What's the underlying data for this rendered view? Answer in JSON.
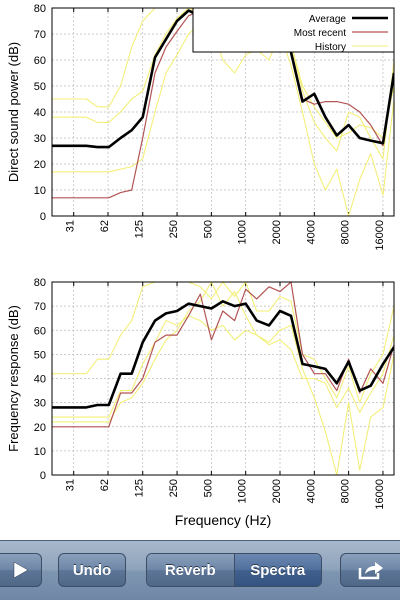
{
  "colors": {
    "average": "#000000",
    "most_recent": "#b35454",
    "history": "#f3ef7a",
    "grid": "#bbbbbb",
    "toolbar": "#7f96b2"
  },
  "toolbar": {
    "play_icon": "play-icon",
    "undo_label": "Undo",
    "reverb_label": "Reverb",
    "spectra_label": "Spectra",
    "selected_segment": "Spectra",
    "share_icon": "share-icon"
  },
  "chart_data": [
    {
      "type": "line",
      "ylabel": "Direct sound power (dB)",
      "xlabel": "",
      "xscale": "log2",
      "xticks": [
        31,
        62,
        125,
        250,
        500,
        1000,
        2000,
        4000,
        8000,
        16000
      ],
      "xlim": [
        20,
        20000
      ],
      "ylim": [
        0,
        80
      ],
      "yticks": [
        0,
        10,
        20,
        30,
        40,
        50,
        60,
        70,
        80
      ],
      "grid": true,
      "legend": "top-right",
      "series": [
        {
          "name": "Average",
          "role": "average",
          "x": [
            20,
            40,
            50,
            63,
            80,
            100,
            125,
            160,
            200,
            250,
            315,
            400,
            500,
            630,
            800,
            1000,
            1250,
            1600,
            2000,
            2500,
            3150,
            4000,
            5000,
            6300,
            8000,
            10000,
            12500,
            16000,
            20000
          ],
          "y": [
            27,
            27,
            26.5,
            26.5,
            30,
            33,
            38,
            61,
            68,
            75,
            79,
            77,
            80,
            66,
            72,
            77,
            74,
            69,
            75,
            63,
            44,
            47,
            38,
            31,
            35,
            30,
            29,
            28,
            55
          ]
        },
        {
          "name": "Most recent",
          "role": "most_recent",
          "x": [
            20,
            40,
            50,
            63,
            80,
            100,
            125,
            160,
            200,
            250,
            315,
            400,
            500,
            630,
            800,
            1000,
            1250,
            1600,
            2000,
            2500,
            3150,
            4000,
            5000,
            6300,
            8000,
            10000,
            12500,
            16000,
            20000
          ],
          "y": [
            7,
            7,
            7,
            7,
            9,
            10,
            30,
            55,
            65,
            71,
            77,
            79,
            80,
            80,
            78,
            79,
            75,
            80,
            80,
            62,
            45,
            43,
            44,
            44,
            43,
            40,
            35,
            27,
            55
          ]
        },
        {
          "name": "History",
          "role": "history",
          "x": [
            20,
            40,
            50,
            63,
            80,
            100,
            125,
            160,
            200,
            250,
            315,
            400,
            500,
            630,
            800,
            1000,
            1250,
            1600,
            2000,
            2500,
            3150,
            4000,
            5000,
            6300,
            8000,
            10000,
            12500,
            16000,
            20000
          ],
          "y": [
            45,
            45,
            42,
            42,
            50,
            65,
            75,
            80,
            80,
            80,
            80,
            79,
            78,
            72,
            68,
            74,
            70,
            70,
            75,
            66,
            48,
            36,
            30,
            25,
            40,
            38,
            30,
            22,
            60
          ]
        },
        {
          "name": "",
          "role": "history",
          "x": [
            20,
            40,
            50,
            63,
            80,
            100,
            125,
            160,
            200,
            250,
            315,
            400,
            500,
            630,
            800,
            1000,
            1250,
            1600,
            2000,
            2500,
            3150,
            4000,
            5000,
            6300,
            8000,
            10000,
            12500,
            16000,
            20000
          ],
          "y": [
            38,
            38,
            36,
            36,
            40,
            45,
            48,
            62,
            70,
            76,
            80,
            78,
            74,
            60,
            55,
            62,
            64,
            60,
            70,
            58,
            40,
            20,
            10,
            18,
            0,
            14,
            24,
            8,
            45
          ]
        },
        {
          "name": "",
          "role": "history",
          "x": [
            20,
            40,
            50,
            63,
            80,
            100,
            125,
            160,
            200,
            250,
            315,
            400,
            500,
            630,
            800,
            1000,
            1250,
            1600,
            2000,
            2500,
            3150,
            4000,
            5000,
            6300,
            8000,
            10000,
            12500,
            16000,
            20000
          ],
          "y": [
            17,
            17,
            17,
            17,
            18,
            19,
            22,
            40,
            55,
            62,
            70,
            74,
            76,
            70,
            66,
            70,
            72,
            75,
            79,
            66,
            50,
            42,
            36,
            30,
            32,
            35,
            34,
            30,
            50
          ]
        }
      ]
    },
    {
      "type": "line",
      "ylabel": "Frequency response (dB)",
      "xlabel": "Frequency (Hz)",
      "xscale": "log2",
      "xticks": [
        31,
        62,
        125,
        250,
        500,
        1000,
        2000,
        4000,
        8000,
        16000
      ],
      "xlim": [
        20,
        20000
      ],
      "ylim": [
        0,
        80
      ],
      "yticks": [
        0,
        10,
        20,
        30,
        40,
        50,
        60,
        70,
        80
      ],
      "grid": true,
      "series": [
        {
          "name": "Average",
          "role": "average",
          "x": [
            20,
            40,
            50,
            63,
            80,
            100,
            125,
            160,
            200,
            250,
            315,
            400,
            500,
            630,
            800,
            1000,
            1250,
            1600,
            2000,
            2500,
            3150,
            4000,
            5000,
            6300,
            8000,
            10000,
            12500,
            16000,
            20000
          ],
          "y": [
            28,
            28,
            29,
            29,
            42,
            42,
            55,
            64,
            67,
            68,
            71,
            70,
            69,
            72,
            70,
            71,
            64,
            62,
            68,
            66,
            46,
            45,
            44,
            38,
            47,
            35,
            37,
            46,
            53
          ]
        },
        {
          "name": "Most recent",
          "role": "most_recent",
          "x": [
            20,
            40,
            50,
            63,
            80,
            100,
            125,
            160,
            200,
            250,
            315,
            400,
            500,
            630,
            800,
            1000,
            1250,
            1600,
            2000,
            2500,
            3150,
            4000,
            5000,
            6300,
            8000,
            10000,
            12500,
            16000,
            20000
          ],
          "y": [
            20,
            20,
            20,
            20,
            34,
            34,
            40,
            55,
            58,
            58,
            66,
            75,
            56,
            68,
            64,
            77,
            73,
            78,
            76,
            80,
            50,
            42,
            42,
            35,
            48,
            34,
            44,
            38,
            54
          ]
        },
        {
          "name": "History",
          "role": "history",
          "x": [
            20,
            40,
            50,
            63,
            80,
            100,
            125,
            160,
            200,
            250,
            315,
            400,
            500,
            630,
            800,
            1000,
            1250,
            1600,
            2000,
            2500,
            3150,
            4000,
            5000,
            6300,
            8000,
            10000,
            12500,
            16000,
            20000
          ],
          "y": [
            42,
            42,
            48,
            48,
            58,
            64,
            78,
            80,
            80,
            80,
            80,
            78,
            73,
            80,
            74,
            80,
            68,
            68,
            74,
            72,
            50,
            48,
            40,
            32,
            45,
            30,
            42,
            50,
            70
          ]
        },
        {
          "name": "",
          "role": "history",
          "x": [
            20,
            40,
            50,
            63,
            80,
            100,
            125,
            160,
            200,
            250,
            315,
            400,
            500,
            630,
            800,
            1000,
            1250,
            1600,
            2000,
            2500,
            3150,
            4000,
            5000,
            6300,
            8000,
            10000,
            12500,
            16000,
            20000
          ],
          "y": [
            24,
            24,
            24,
            24,
            35,
            35,
            46,
            55,
            64,
            62,
            66,
            64,
            60,
            62,
            56,
            60,
            58,
            55,
            60,
            62,
            44,
            32,
            18,
            0,
            30,
            2,
            24,
            28,
            50
          ]
        },
        {
          "name": "",
          "role": "history",
          "x": [
            20,
            40,
            50,
            63,
            80,
            100,
            125,
            160,
            200,
            250,
            315,
            400,
            500,
            630,
            800,
            1000,
            1250,
            1600,
            2000,
            2500,
            3150,
            4000,
            5000,
            6300,
            8000,
            10000,
            12500,
            16000,
            20000
          ],
          "y": [
            22,
            22,
            22,
            22,
            30,
            32,
            38,
            48,
            56,
            60,
            68,
            72,
            80,
            70,
            76,
            66,
            58,
            54,
            56,
            52,
            40,
            40,
            38,
            28,
            36,
            26,
            34,
            42,
            58
          ]
        }
      ]
    }
  ]
}
